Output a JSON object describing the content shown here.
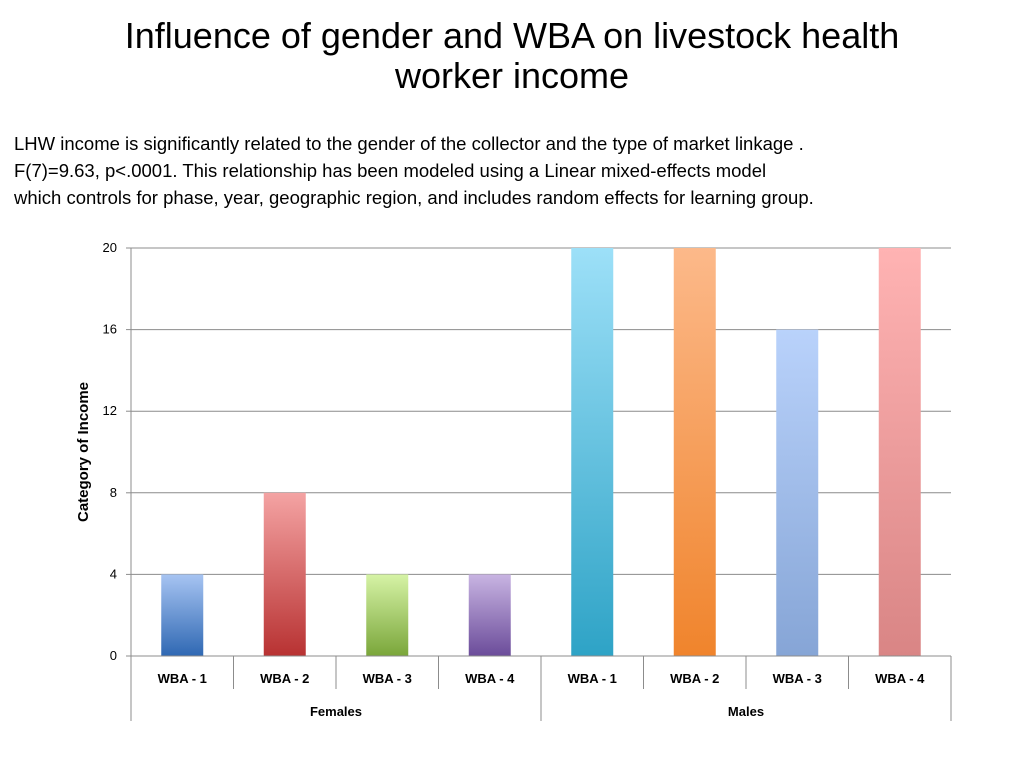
{
  "slide": {
    "title_line1": "Influence of gender and WBA on livestock health",
    "title_line2": "worker income",
    "body_lines": [
      "LHW income is significantly related to the gender of the collector and the type of market linkage .",
      "F(7)=9.63, p<.0001. This relationship has been modeled using a Linear mixed-effects model",
      "which controls for phase, year, geographic region, and includes random effects for learning group."
    ]
  },
  "chart_data": {
    "type": "bar",
    "title": "",
    "xlabel": "",
    "ylabel": "Category of Income",
    "ylim": [
      0,
      20
    ],
    "yticks": [
      0,
      4,
      8,
      12,
      16,
      20
    ],
    "grid": true,
    "legend": "none",
    "groups": [
      {
        "name": "Females",
        "categories": [
          "WBA - 1",
          "WBA - 2",
          "WBA - 3",
          "WBA - 4"
        ]
      },
      {
        "name": "Males",
        "categories": [
          "WBA - 1",
          "WBA - 2",
          "WBA - 3",
          "WBA - 4"
        ]
      }
    ],
    "categories": [
      "WBA - 1",
      "WBA - 2",
      "WBA - 3",
      "WBA - 4",
      "WBA - 1",
      "WBA - 2",
      "WBA - 3",
      "WBA - 4"
    ],
    "values": [
      4,
      8,
      4,
      4,
      20,
      20,
      16,
      20
    ],
    "colors": [
      [
        "#a7c4f2",
        "#2f68b3"
      ],
      [
        "#f4a3a3",
        "#b83232"
      ],
      [
        "#d6f3a6",
        "#7aa63a"
      ],
      [
        "#c8b4e2",
        "#6b4c9a"
      ],
      [
        "#9de0f8",
        "#2ea3c6"
      ],
      [
        "#fcb98a",
        "#f0842c"
      ],
      [
        "#b9d2fb",
        "#86a5d6"
      ],
      [
        "#ffb3b3",
        "#d98585"
      ]
    ]
  }
}
